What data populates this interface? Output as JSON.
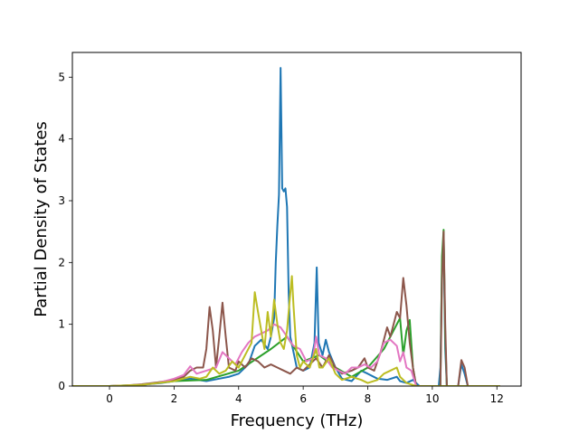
{
  "chart_data": {
    "type": "line",
    "title": "",
    "xlabel": "Frequency (THz)",
    "ylabel": "Partial Density of States",
    "xlim": [
      -1.15,
      12.75
    ],
    "ylim": [
      0,
      5.4
    ],
    "xticks": [
      0,
      2,
      4,
      6,
      8,
      10,
      12
    ],
    "yticks": [
      0,
      1,
      2,
      3,
      4,
      5
    ],
    "grid": false,
    "legend": "none",
    "series": [
      {
        "color": "#1f77b4",
        "points": [
          [
            -1.2,
            0
          ],
          [
            0,
            0
          ],
          [
            1,
            0.02
          ],
          [
            1.6,
            0.05
          ],
          [
            2,
            0.08
          ],
          [
            2.5,
            0.12
          ],
          [
            3,
            0.08
          ],
          [
            3.4,
            0.12
          ],
          [
            3.7,
            0.15
          ],
          [
            4,
            0.2
          ],
          [
            4.3,
            0.35
          ],
          [
            4.5,
            0.65
          ],
          [
            4.7,
            0.75
          ],
          [
            4.9,
            0.6
          ],
          [
            5.0,
            0.8
          ],
          [
            5.1,
            1.1
          ],
          [
            5.15,
            2.0
          ],
          [
            5.2,
            2.6
          ],
          [
            5.25,
            3.1
          ],
          [
            5.3,
            5.15
          ],
          [
            5.35,
            3.2
          ],
          [
            5.4,
            3.15
          ],
          [
            5.45,
            3.2
          ],
          [
            5.5,
            2.9
          ],
          [
            5.55,
            1.5
          ],
          [
            5.6,
            0.8
          ],
          [
            5.7,
            0.55
          ],
          [
            5.8,
            0.3
          ],
          [
            6.0,
            0.25
          ],
          [
            6.2,
            0.3
          ],
          [
            6.35,
            0.7
          ],
          [
            6.42,
            1.92
          ],
          [
            6.48,
            0.7
          ],
          [
            6.6,
            0.5
          ],
          [
            6.7,
            0.75
          ],
          [
            6.8,
            0.55
          ],
          [
            7.0,
            0.3
          ],
          [
            7.2,
            0.12
          ],
          [
            7.5,
            0.08
          ],
          [
            7.8,
            0.25
          ],
          [
            8.0,
            0.2
          ],
          [
            8.3,
            0.12
          ],
          [
            8.6,
            0.1
          ],
          [
            8.9,
            0.15
          ],
          [
            9.0,
            0.08
          ],
          [
            9.2,
            0.05
          ],
          [
            9.4,
            0.1
          ],
          [
            9.6,
            0
          ],
          [
            10.2,
            0
          ],
          [
            10.25,
            0.3
          ],
          [
            10.3,
            1.9
          ],
          [
            10.35,
            2.4
          ],
          [
            10.4,
            0.6
          ],
          [
            10.45,
            0
          ],
          [
            10.8,
            0
          ],
          [
            10.9,
            0.35
          ],
          [
            11.0,
            0.2
          ],
          [
            11.1,
            0
          ],
          [
            12.1,
            0
          ]
        ]
      },
      {
        "color": "#2ca02c",
        "points": [
          [
            -1.2,
            0
          ],
          [
            0,
            0
          ],
          [
            1,
            0.02
          ],
          [
            2,
            0.08
          ],
          [
            3,
            0.1
          ],
          [
            4,
            0.25
          ],
          [
            5,
            0.6
          ],
          [
            5.5,
            0.8
          ],
          [
            6,
            0.4
          ],
          [
            6.5,
            0.5
          ],
          [
            7,
            0.3
          ],
          [
            7.5,
            0.15
          ],
          [
            8,
            0.3
          ],
          [
            8.5,
            0.6
          ],
          [
            9,
            1.1
          ],
          [
            9.1,
            0.5
          ],
          [
            9.2,
            0.9
          ],
          [
            9.3,
            1.07
          ],
          [
            9.4,
            0.3
          ],
          [
            9.5,
            0
          ],
          [
            10.25,
            0
          ],
          [
            10.3,
            2.1
          ],
          [
            10.35,
            2.53
          ],
          [
            10.4,
            0.8
          ],
          [
            10.45,
            0
          ],
          [
            12.1,
            0
          ]
        ]
      },
      {
        "color": "#8c564b",
        "points": [
          [
            -1.2,
            0
          ],
          [
            0,
            0
          ],
          [
            0.5,
            0.01
          ],
          [
            1,
            0.03
          ],
          [
            1.5,
            0.06
          ],
          [
            2,
            0.1
          ],
          [
            2.3,
            0.15
          ],
          [
            2.5,
            0.25
          ],
          [
            2.7,
            0.3
          ],
          [
            2.9,
            0.3
          ],
          [
            3.0,
            0.6
          ],
          [
            3.1,
            1.28
          ],
          [
            3.2,
            0.9
          ],
          [
            3.3,
            0.3
          ],
          [
            3.4,
            0.8
          ],
          [
            3.5,
            1.35
          ],
          [
            3.6,
            0.8
          ],
          [
            3.7,
            0.3
          ],
          [
            3.9,
            0.25
          ],
          [
            4.0,
            0.4
          ],
          [
            4.2,
            0.3
          ],
          [
            4.4,
            0.45
          ],
          [
            4.6,
            0.4
          ],
          [
            4.8,
            0.3
          ],
          [
            5.0,
            0.35
          ],
          [
            5.2,
            0.3
          ],
          [
            5.4,
            0.25
          ],
          [
            5.6,
            0.2
          ],
          [
            5.8,
            0.3
          ],
          [
            6.0,
            0.25
          ],
          [
            6.2,
            0.35
          ],
          [
            6.4,
            0.45
          ],
          [
            6.6,
            0.3
          ],
          [
            6.8,
            0.5
          ],
          [
            7.0,
            0.3
          ],
          [
            7.2,
            0.2
          ],
          [
            7.5,
            0.25
          ],
          [
            7.7,
            0.3
          ],
          [
            7.9,
            0.45
          ],
          [
            8.0,
            0.3
          ],
          [
            8.2,
            0.25
          ],
          [
            8.4,
            0.55
          ],
          [
            8.6,
            0.95
          ],
          [
            8.7,
            0.8
          ],
          [
            8.9,
            1.2
          ],
          [
            9.0,
            1.1
          ],
          [
            9.1,
            1.75
          ],
          [
            9.2,
            1.3
          ],
          [
            9.3,
            0.7
          ],
          [
            9.4,
            0.3
          ],
          [
            9.5,
            0
          ],
          [
            10.25,
            0
          ],
          [
            10.3,
            1.7
          ],
          [
            10.35,
            2.5
          ],
          [
            10.4,
            1.0
          ],
          [
            10.45,
            0
          ],
          [
            10.8,
            0
          ],
          [
            10.9,
            0.42
          ],
          [
            11.0,
            0.3
          ],
          [
            11.1,
            0
          ],
          [
            12.1,
            0
          ]
        ]
      },
      {
        "color": "#e377c2",
        "points": [
          [
            -1.2,
            0
          ],
          [
            0,
            0
          ],
          [
            1,
            0.02
          ],
          [
            1.5,
            0.05
          ],
          [
            2,
            0.12
          ],
          [
            2.3,
            0.18
          ],
          [
            2.5,
            0.32
          ],
          [
            2.7,
            0.2
          ],
          [
            3.0,
            0.25
          ],
          [
            3.3,
            0.3
          ],
          [
            3.5,
            0.55
          ],
          [
            3.7,
            0.45
          ],
          [
            3.9,
            0.35
          ],
          [
            4.1,
            0.55
          ],
          [
            4.3,
            0.7
          ],
          [
            4.5,
            0.8
          ],
          [
            4.7,
            0.85
          ],
          [
            4.9,
            0.9
          ],
          [
            5.1,
            1.0
          ],
          [
            5.3,
            0.95
          ],
          [
            5.5,
            0.8
          ],
          [
            5.7,
            0.65
          ],
          [
            5.9,
            0.6
          ],
          [
            6.1,
            0.4
          ],
          [
            6.3,
            0.45
          ],
          [
            6.4,
            0.8
          ],
          [
            6.5,
            0.5
          ],
          [
            6.7,
            0.45
          ],
          [
            6.9,
            0.3
          ],
          [
            7.1,
            0.25
          ],
          [
            7.3,
            0.2
          ],
          [
            7.5,
            0.3
          ],
          [
            7.7,
            0.3
          ],
          [
            7.9,
            0.35
          ],
          [
            8.1,
            0.3
          ],
          [
            8.3,
            0.4
          ],
          [
            8.5,
            0.7
          ],
          [
            8.7,
            0.75
          ],
          [
            8.9,
            0.65
          ],
          [
            9.0,
            0.4
          ],
          [
            9.1,
            0.55
          ],
          [
            9.2,
            0.3
          ],
          [
            9.35,
            0.25
          ],
          [
            9.5,
            0
          ],
          [
            12.1,
            0
          ]
        ]
      },
      {
        "color": "#bcbd22",
        "points": [
          [
            -1.2,
            0
          ],
          [
            0,
            0
          ],
          [
            1,
            0.02
          ],
          [
            1.5,
            0.05
          ],
          [
            2,
            0.08
          ],
          [
            2.5,
            0.15
          ],
          [
            2.8,
            0.12
          ],
          [
            3.0,
            0.15
          ],
          [
            3.2,
            0.3
          ],
          [
            3.4,
            0.2
          ],
          [
            3.6,
            0.25
          ],
          [
            3.8,
            0.4
          ],
          [
            4.0,
            0.3
          ],
          [
            4.2,
            0.5
          ],
          [
            4.4,
            0.7
          ],
          [
            4.5,
            1.52
          ],
          [
            4.6,
            1.2
          ],
          [
            4.7,
            0.9
          ],
          [
            4.8,
            0.6
          ],
          [
            4.9,
            1.2
          ],
          [
            5.0,
            0.8
          ],
          [
            5.1,
            1.4
          ],
          [
            5.2,
            1.0
          ],
          [
            5.3,
            0.7
          ],
          [
            5.4,
            0.6
          ],
          [
            5.5,
            0.9
          ],
          [
            5.6,
            1.5
          ],
          [
            5.65,
            1.78
          ],
          [
            5.7,
            1.3
          ],
          [
            5.8,
            0.5
          ],
          [
            5.9,
            0.3
          ],
          [
            6.0,
            0.4
          ],
          [
            6.2,
            0.3
          ],
          [
            6.4,
            0.6
          ],
          [
            6.5,
            0.3
          ],
          [
            6.6,
            0.3
          ],
          [
            6.8,
            0.45
          ],
          [
            7.0,
            0.2
          ],
          [
            7.2,
            0.1
          ],
          [
            7.5,
            0.15
          ],
          [
            7.8,
            0.1
          ],
          [
            8.0,
            0.05
          ],
          [
            8.3,
            0.1
          ],
          [
            8.5,
            0.2
          ],
          [
            8.7,
            0.25
          ],
          [
            8.9,
            0.3
          ],
          [
            9.0,
            0.15
          ],
          [
            9.2,
            0.05
          ],
          [
            9.5,
            0
          ],
          [
            12.1,
            0
          ]
        ]
      }
    ]
  }
}
